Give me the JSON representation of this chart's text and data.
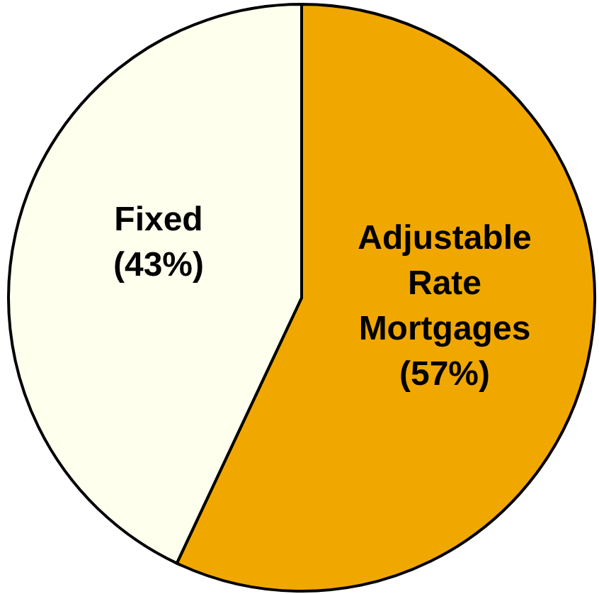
{
  "chart_data": {
    "type": "pie",
    "categories": [
      "Adjustable Rate Mortgages",
      "Fixed"
    ],
    "values": [
      57,
      43
    ],
    "colors": [
      "#f0a800",
      "#ffffee"
    ],
    "value_labels": [
      "(57%)",
      "(43%)"
    ]
  }
}
